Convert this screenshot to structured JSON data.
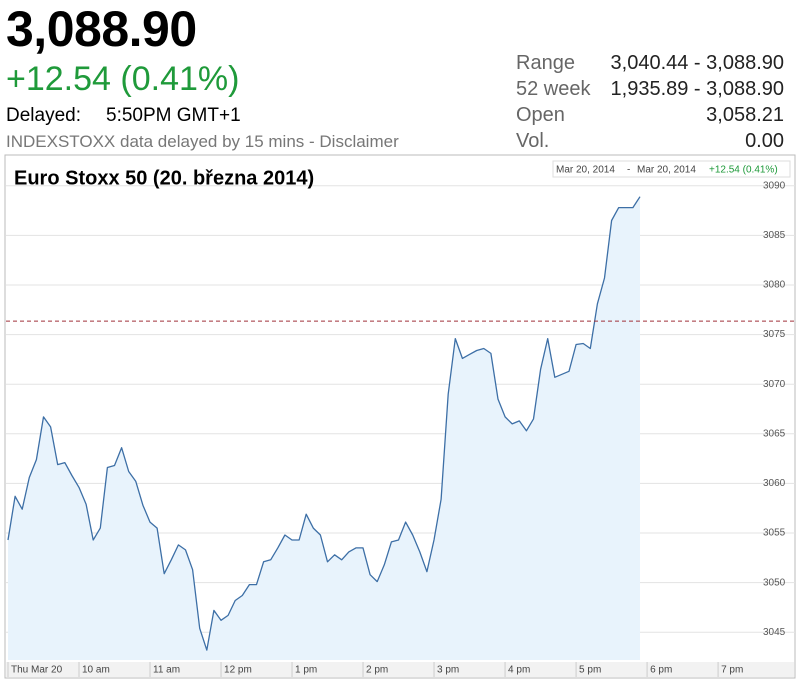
{
  "quote": {
    "price": "3,088.90",
    "change": "+12.54 (0.41%)",
    "delayed_label": "Delayed:",
    "delayed_time": "5:50PM GMT+1",
    "disclaimer": "INDEXSTOXX data delayed by 15 mins - Disclaimer"
  },
  "stats": [
    {
      "label": "Range",
      "value": "3,040.44 - 3,088.90"
    },
    {
      "label": "52 week",
      "value": "1,935.89 - 3,088.90"
    },
    {
      "label": "Open",
      "value": "3,058.21"
    },
    {
      "label": "Vol.",
      "value": "0.00"
    }
  ],
  "chart_data": {
    "type": "area",
    "title": "Euro Stoxx 50 (20. března 2014)",
    "range_label": {
      "from": "Mar 20, 2014",
      "separator": "-",
      "to": "Mar 20, 2014",
      "change": "+12.54 (0.41%)"
    },
    "color": "#3d6fa6",
    "fill": "#e8f3fc",
    "reference_line": 3076.36,
    "grid": true,
    "xlim": [
      9,
      19.52
    ],
    "ylim": [
      3042.2,
      3092.8
    ],
    "xticks": [
      {
        "value": 9,
        "label": "Thu Mar 20"
      },
      {
        "value": 10,
        "label": "10 am"
      },
      {
        "value": 11,
        "label": "11 am"
      },
      {
        "value": 12,
        "label": "12 pm"
      },
      {
        "value": 13,
        "label": "1 pm"
      },
      {
        "value": 14,
        "label": "2 pm"
      },
      {
        "value": 15,
        "label": "3 pm"
      },
      {
        "value": 16,
        "label": "4 pm"
      },
      {
        "value": 17,
        "label": "5 pm"
      },
      {
        "value": 18,
        "label": "6 pm"
      },
      {
        "value": 19,
        "label": "7 pm"
      }
    ],
    "yticks": [
      3045,
      3050,
      3055,
      3060,
      3065,
      3070,
      3075,
      3080,
      3085,
      3090
    ],
    "x": [
      9.0,
      9.1,
      9.2,
      9.3,
      9.4,
      9.5,
      9.6,
      9.7,
      9.8,
      9.9,
      10.0,
      10.1,
      10.2,
      10.3,
      10.4,
      10.5,
      10.6,
      10.7,
      10.8,
      10.9,
      11.0,
      11.1,
      11.2,
      11.3,
      11.4,
      11.5,
      11.6,
      11.7,
      11.8,
      11.9,
      12.0,
      12.1,
      12.2,
      12.3,
      12.4,
      12.5,
      12.6,
      12.7,
      12.8,
      12.9,
      13.0,
      13.1,
      13.2,
      13.3,
      13.4,
      13.5,
      13.6,
      13.7,
      13.8,
      13.9,
      14.0,
      14.1,
      14.2,
      14.3,
      14.4,
      14.5,
      14.6,
      14.7,
      14.8,
      14.9,
      15.0,
      15.1,
      15.2,
      15.3,
      15.4,
      15.5,
      15.6,
      15.7,
      15.8,
      15.9,
      16.0,
      16.1,
      16.2,
      16.3,
      16.4,
      16.5,
      16.6,
      16.7,
      16.8,
      16.9,
      17.0,
      17.1,
      17.2,
      17.3,
      17.4,
      17.5,
      17.6,
      17.7,
      17.8,
      17.9
    ],
    "values": [
      3054.3,
      3058.7,
      3057.4,
      3060.6,
      3062.4,
      3066.7,
      3065.7,
      3061.9,
      3062.1,
      3060.8,
      3059.6,
      3057.9,
      3054.3,
      3055.5,
      3061.6,
      3061.8,
      3063.6,
      3061.2,
      3060.2,
      3057.8,
      3056.1,
      3055.5,
      3050.9,
      3052.3,
      3053.8,
      3053.3,
      3051.3,
      3045.4,
      3043.2,
      3047.2,
      3046.2,
      3046.7,
      3048.2,
      3048.7,
      3049.8,
      3049.8,
      3052.1,
      3052.3,
      3053.5,
      3054.8,
      3054.3,
      3054.3,
      3056.9,
      3055.5,
      3054.8,
      3052.1,
      3052.8,
      3052.3,
      3053.1,
      3053.5,
      3053.5,
      3050.8,
      3050.1,
      3051.8,
      3054.1,
      3054.3,
      3056.1,
      3054.8,
      3053.1,
      3051.1,
      3054.3,
      3058.4,
      3069.0,
      3074.6,
      3072.6,
      3073.0,
      3073.4,
      3073.6,
      3073.1,
      3068.5,
      3066.7,
      3066.0,
      3066.3,
      3065.3,
      3066.5,
      3071.5,
      3074.6,
      3070.7,
      3071.0,
      3071.3,
      3074.0,
      3074.1,
      3073.6,
      3078.1,
      3080.7,
      3086.5,
      3087.8,
      3087.8,
      3087.8,
      3088.9
    ]
  }
}
